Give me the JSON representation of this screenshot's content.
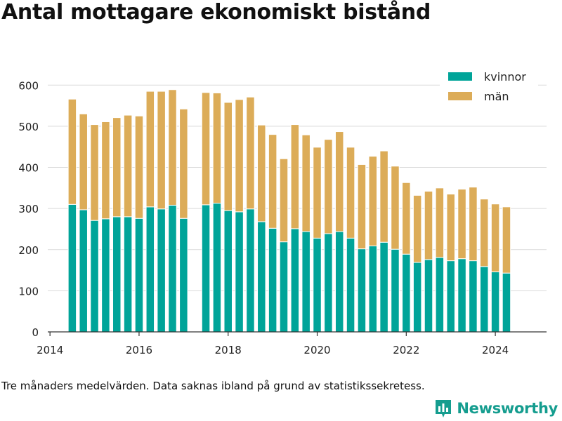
{
  "title": "Antal mottagare ekonomiskt bistånd",
  "footnote": "Tre månaders medelvärden. Data saknas ibland på grund av statistikssekretess.",
  "brand": {
    "name": "Newsworthy",
    "icon": "bar-chart-logo-icon",
    "color": "#159d8f"
  },
  "colors": {
    "kvinnor": "#00a499",
    "man": "#dcac58",
    "grid": "#d9d9d9",
    "axis": "#333333"
  },
  "chart_data": {
    "type": "bar",
    "stacked": true,
    "title": "Antal mottagare ekonomiskt bistånd",
    "xlabel": "",
    "ylabel": "",
    "ylim": [
      0,
      650
    ],
    "yticks": [
      0,
      100,
      200,
      300,
      400,
      500,
      600
    ],
    "xticks": [
      "2014",
      "2016",
      "2018",
      "2020",
      "2022",
      "2024"
    ],
    "xlim": [
      2013.95,
      2025.15
    ],
    "grid": true,
    "legend_position": "top-right",
    "x": [
      2014.5,
      2014.75,
      2015.0,
      2015.25,
      2015.5,
      2015.75,
      2016.0,
      2016.25,
      2016.5,
      2016.75,
      2017.0,
      2017.5,
      2017.75,
      2018.0,
      2018.25,
      2018.5,
      2018.75,
      2019.0,
      2019.25,
      2019.5,
      2019.75,
      2020.0,
      2020.25,
      2020.5,
      2020.75,
      2021.0,
      2021.25,
      2021.5,
      2021.75,
      2022.0,
      2022.25,
      2022.5,
      2022.75,
      2023.0,
      2023.25,
      2023.5,
      2023.75,
      2024.0,
      2024.25
    ],
    "series": [
      {
        "name": "kvinnor",
        "values": [
          310,
          297,
          271,
          275,
          280,
          280,
          276,
          304,
          299,
          308,
          276,
          309,
          313,
          295,
          292,
          299,
          268,
          252,
          219,
          251,
          244,
          228,
          239,
          244,
          228,
          202,
          209,
          218,
          201,
          189,
          169,
          176,
          181,
          173,
          178,
          173,
          159,
          146,
          143
        ]
      },
      {
        "name": "män",
        "values": [
          256,
          233,
          233,
          236,
          241,
          247,
          249,
          281,
          286,
          281,
          266,
          273,
          268,
          263,
          273,
          272,
          235,
          228,
          202,
          253,
          235,
          221,
          229,
          243,
          221,
          205,
          218,
          222,
          202,
          174,
          163,
          166,
          169,
          162,
          169,
          179,
          164,
          165,
          161
        ]
      }
    ]
  }
}
